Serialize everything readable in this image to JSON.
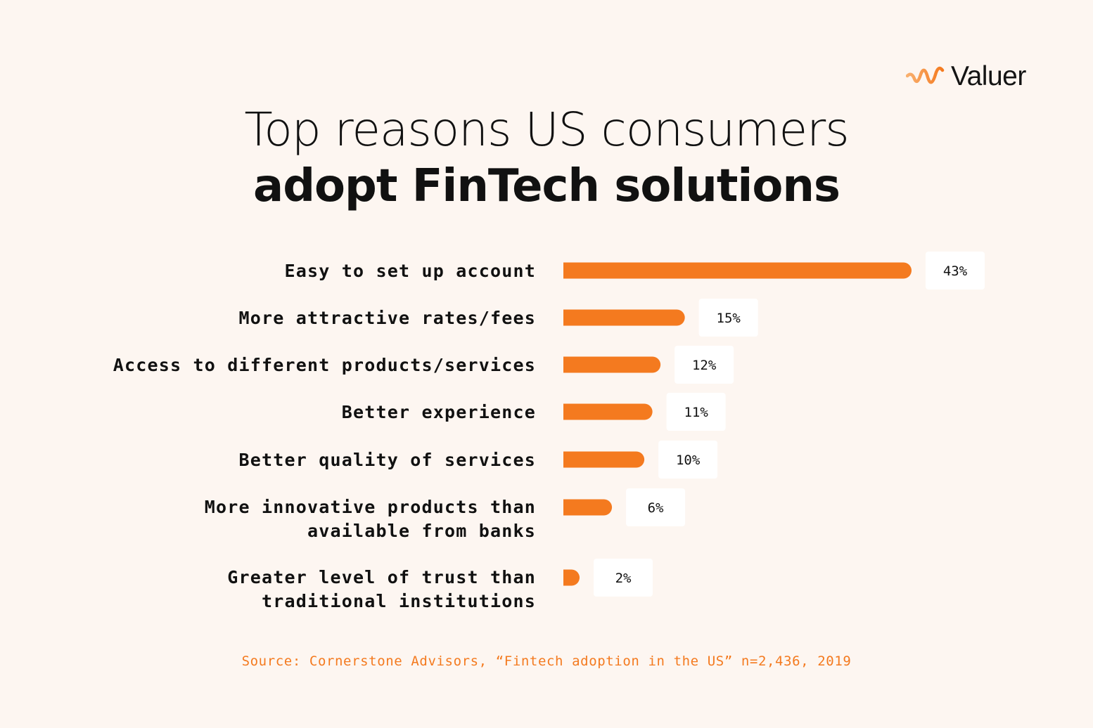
{
  "brand": {
    "name": "Valuer",
    "accent_color": "#f47a1f",
    "logo_icon": "valuer-wave-icon"
  },
  "header": {
    "title_line1": "Top reasons US consumers",
    "title_line2": "adopt FinTech solutions"
  },
  "chart_data": {
    "type": "bar",
    "orientation": "horizontal",
    "categories": [
      [
        "Easy to set up account"
      ],
      [
        "More attractive rates/fees"
      ],
      [
        "Access to different products/services"
      ],
      [
        "Better experience"
      ],
      [
        "Better quality of services"
      ],
      [
        "More innovative products than",
        "available from banks"
      ],
      [
        "Greater level of trust than",
        "traditional institutions"
      ]
    ],
    "values": [
      43,
      15,
      12,
      11,
      10,
      6,
      2
    ],
    "value_labels": [
      "43%",
      "15%",
      "12%",
      "11%",
      "10%",
      "6%",
      "2%"
    ],
    "unit": "%",
    "title": "Top reasons US consumers adopt FinTech solutions",
    "xlabel": "",
    "ylabel": "",
    "xlim": [
      0,
      43
    ],
    "grid": false,
    "legend": "none",
    "bar_color": "#f47a1f"
  },
  "footer": {
    "source": "Source: Cornerstone Advisors, “Fintech adoption in the US” n=2,436, 2019"
  }
}
